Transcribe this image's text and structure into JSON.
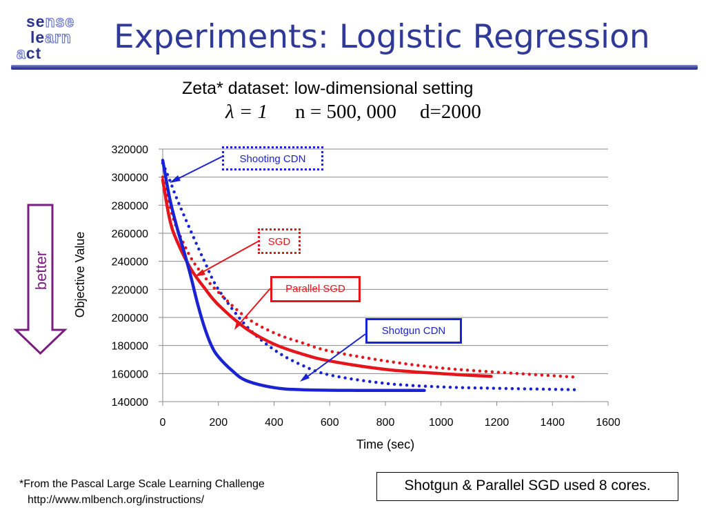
{
  "header": {
    "logo": {
      "line1": [
        "se",
        "nse"
      ],
      "line2": [
        "le",
        "arn"
      ],
      "line3": [
        "a",
        "ct"
      ]
    },
    "title": "Experiments: Logistic Regression"
  },
  "subtitle": "Zeta* dataset: low-dimensional setting",
  "params": {
    "lambda": "λ = 1",
    "n": "n = 500, 000",
    "d": "d=2000"
  },
  "side_arrow": {
    "label": "better",
    "color": "#7a1d80"
  },
  "chart_data": {
    "type": "line",
    "xlabel": "Time (sec)",
    "ylabel": "Objective Value",
    "xlim": [
      0,
      1600
    ],
    "ylim": [
      140000,
      320000
    ],
    "x_ticks": [
      0,
      200,
      400,
      600,
      800,
      1000,
      1200,
      1400,
      1600
    ],
    "y_ticks": [
      140000,
      160000,
      180000,
      200000,
      220000,
      240000,
      260000,
      280000,
      300000,
      320000
    ],
    "grid": "horizontal",
    "series": [
      {
        "name": "Shooting CDN",
        "style": "dotted",
        "color": "#1a23d4",
        "x": [
          0,
          25,
          50,
          100,
          150,
          200,
          300,
          400,
          500,
          600,
          800,
          1000,
          1200,
          1480
        ],
        "y": [
          310000,
          298000,
          285000,
          262000,
          240000,
          220000,
          194000,
          177000,
          166000,
          159000,
          153000,
          150500,
          149500,
          148500
        ]
      },
      {
        "name": "SGD",
        "style": "dotted",
        "color": "#e4161b",
        "x": [
          0,
          25,
          50,
          100,
          150,
          200,
          300,
          400,
          500,
          600,
          800,
          1000,
          1200,
          1480
        ],
        "y": [
          300000,
          280000,
          264000,
          243000,
          229000,
          218000,
          200000,
          189000,
          182000,
          176000,
          169000,
          164000,
          161000,
          157500
        ]
      },
      {
        "name": "Parallel SGD",
        "style": "solid",
        "color": "#e4161b",
        "x": [
          0,
          25,
          50,
          100,
          150,
          200,
          300,
          400,
          500,
          600,
          800,
          1000,
          1180
        ],
        "y": [
          298000,
          270000,
          255000,
          235000,
          221000,
          209000,
          192000,
          181000,
          174000,
          169000,
          163000,
          160000,
          158000
        ]
      },
      {
        "name": "Shotgun CDN",
        "style": "solid",
        "color": "#1a23d4",
        "x": [
          0,
          25,
          50,
          75,
          100,
          125,
          150,
          175,
          200,
          250,
          300,
          400,
          500,
          700,
          940
        ],
        "y": [
          312000,
          285000,
          265000,
          248000,
          230000,
          210000,
          193000,
          180000,
          172000,
          162000,
          155000,
          150000,
          148500,
          148000,
          148000
        ]
      }
    ]
  },
  "annotations": {
    "shooting_cdn": "Shooting CDN",
    "sgd": "SGD",
    "parallel_sgd": "Parallel SGD",
    "shotgun_cdn": "Shotgun CDN"
  },
  "footnote": {
    "line1": "*From the Pascal Large Scale Learning Challenge",
    "line2": "http://www.mlbench.org/instructions/"
  },
  "cores_note": "Shotgun & Parallel SGD used 8 cores."
}
